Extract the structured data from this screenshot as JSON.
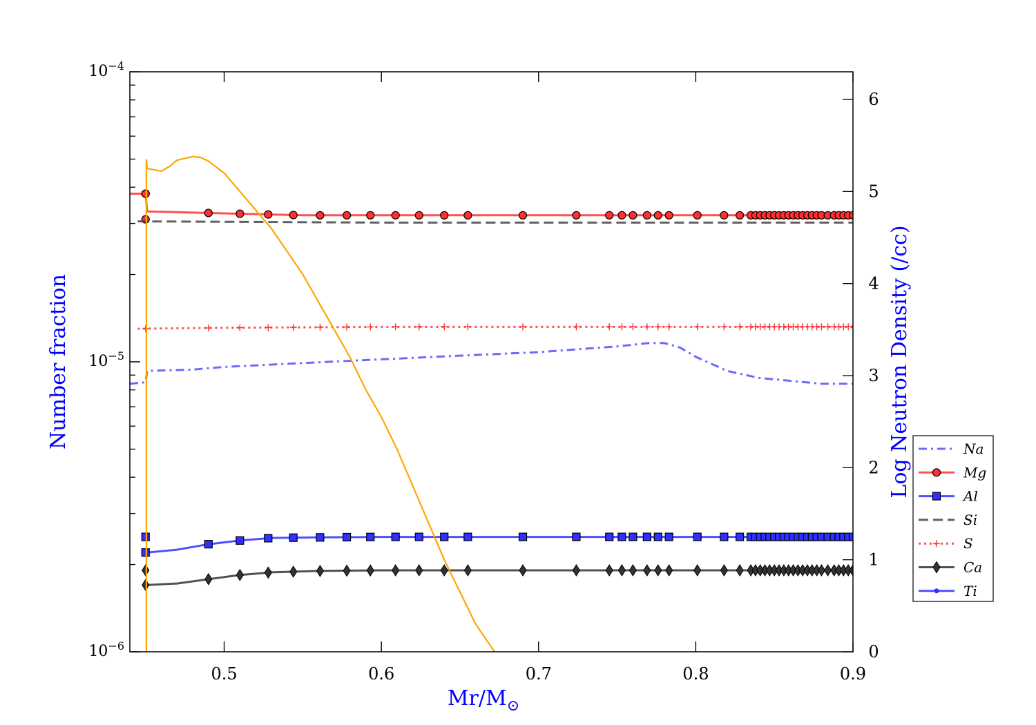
{
  "chart_data": {
    "type": "line",
    "xlabel": "Mr/M",
    "xlabel_symbol": "⊙",
    "ylabel": "Number fraction",
    "ylabel_right": "Log Neutron Density (/cc)",
    "xlim": [
      0.44,
      0.9
    ],
    "ylim": [
      1e-06,
      0.0001
    ],
    "yscale": "log",
    "ylim_right": [
      0,
      6.3
    ],
    "x_ticks": [
      "0.5",
      "0.6",
      "0.7",
      "0.8",
      "0.9"
    ],
    "x_tick_values": [
      0.5,
      0.6,
      0.7,
      0.8,
      0.9
    ],
    "y_ticks": [
      {
        "base": "10",
        "exp": "−4",
        "value": 0.0001
      },
      {
        "base": "10",
        "exp": "−5",
        "value": 1e-05
      },
      {
        "base": "10",
        "exp": "−6",
        "value": 1e-06
      }
    ],
    "y_right_ticks": [
      "0",
      "1",
      "2",
      "3",
      "4",
      "5",
      "6"
    ],
    "legend_position": "lower-right (outside plot)",
    "grid": false,
    "marker_x": [
      0.45,
      0.49,
      0.51,
      0.528,
      0.544,
      0.561,
      0.578,
      0.593,
      0.609,
      0.624,
      0.64,
      0.655,
      0.69,
      0.724,
      0.745,
      0.753,
      0.76,
      0.769,
      0.776,
      0.783,
      0.801,
      0.818,
      0.828,
      0.835,
      0.838,
      0.841,
      0.844,
      0.847,
      0.85,
      0.853,
      0.856,
      0.859,
      0.862,
      0.865,
      0.868,
      0.871,
      0.874,
      0.877,
      0.88,
      0.884,
      0.888,
      0.891,
      0.894,
      0.897,
      0.9
    ],
    "series": [
      {
        "name": "Na",
        "color": "#5050ff",
        "style": "dashdot",
        "marker": "none",
        "points": [
          [
            0.44,
            8.4e-06
          ],
          [
            0.45,
            8.5e-06
          ],
          [
            0.451,
            9.3e-06
          ],
          [
            0.48,
            9.4e-06
          ],
          [
            0.5,
            9.6e-06
          ],
          [
            0.55,
            9.9e-06
          ],
          [
            0.6,
            1.02e-05
          ],
          [
            0.65,
            1.05e-05
          ],
          [
            0.7,
            1.08e-05
          ],
          [
            0.75,
            1.13e-05
          ],
          [
            0.77,
            1.16e-05
          ],
          [
            0.78,
            1.16e-05
          ],
          [
            0.79,
            1.12e-05
          ],
          [
            0.8,
            1.04e-05
          ],
          [
            0.82,
            9.3e-06
          ],
          [
            0.84,
            8.8e-06
          ],
          [
            0.86,
            8.6e-06
          ],
          [
            0.88,
            8.4e-06
          ],
          [
            0.9,
            8.4e-06
          ]
        ]
      },
      {
        "name": "Mg",
        "color": "#ff3030",
        "style": "solid",
        "marker": "circle",
        "points": [
          [
            0.44,
            3.8e-05
          ],
          [
            0.45,
            3.8e-05
          ],
          [
            0.451,
            3.3e-05
          ],
          [
            0.5,
            3.25e-05
          ],
          [
            0.55,
            3.2e-05
          ],
          [
            0.6,
            3.2e-05
          ],
          [
            0.7,
            3.2e-05
          ],
          [
            0.8,
            3.2e-05
          ],
          [
            0.9,
            3.2e-05
          ]
        ],
        "extra_markers": [
          [
            0.45,
            3.8e-05
          ],
          [
            0.45,
            3.1e-05
          ]
        ]
      },
      {
        "name": "Al",
        "color": "#3030ff",
        "style": "solid",
        "marker": "square",
        "points": [
          [
            0.451,
            2.2e-06
          ],
          [
            0.47,
            2.25e-06
          ],
          [
            0.49,
            2.35e-06
          ],
          [
            0.51,
            2.42e-06
          ],
          [
            0.53,
            2.47e-06
          ],
          [
            0.56,
            2.48e-06
          ],
          [
            0.6,
            2.49e-06
          ],
          [
            0.7,
            2.49e-06
          ],
          [
            0.8,
            2.49e-06
          ],
          [
            0.9,
            2.49e-06
          ]
        ],
        "extra_markers": [
          [
            0.45,
            2.49e-06
          ]
        ]
      },
      {
        "name": "Si",
        "color": "#444444",
        "style": "dashed",
        "marker": "none",
        "points": [
          [
            0.445,
            3.05e-05
          ],
          [
            0.5,
            3.04e-05
          ],
          [
            0.6,
            3.02e-05
          ],
          [
            0.7,
            3.02e-05
          ],
          [
            0.8,
            3.02e-05
          ],
          [
            0.9,
            3.02e-05
          ]
        ]
      },
      {
        "name": "S",
        "color": "#ff3030",
        "style": "dotted",
        "marker": "plus",
        "points": [
          [
            0.445,
            1.3e-05
          ],
          [
            0.5,
            1.31e-05
          ],
          [
            0.6,
            1.32e-05
          ],
          [
            0.7,
            1.32e-05
          ],
          [
            0.8,
            1.32e-05
          ],
          [
            0.9,
            1.32e-05
          ]
        ]
      },
      {
        "name": "Ca",
        "color": "#333333",
        "style": "solid",
        "marker": "diamond",
        "points": [
          [
            0.451,
            1.7e-06
          ],
          [
            0.47,
            1.72e-06
          ],
          [
            0.49,
            1.78e-06
          ],
          [
            0.51,
            1.84e-06
          ],
          [
            0.53,
            1.88e-06
          ],
          [
            0.56,
            1.9e-06
          ],
          [
            0.6,
            1.91e-06
          ],
          [
            0.7,
            1.91e-06
          ],
          [
            0.8,
            1.91e-06
          ],
          [
            0.9,
            1.91e-06
          ]
        ],
        "extra_markers": [
          [
            0.45,
            1.91e-06
          ]
        ]
      },
      {
        "name": "Ti",
        "color": "#3030ff",
        "style": "solid",
        "marker": "dot",
        "points": []
      }
    ],
    "neutron_density": {
      "color": "#ffa500",
      "axis": "right",
      "points": [
        [
          0.4505,
          0
        ],
        [
          0.4505,
          5.35
        ],
        [
          0.451,
          5.25
        ],
        [
          0.46,
          5.22
        ],
        [
          0.465,
          5.27
        ],
        [
          0.47,
          5.34
        ],
        [
          0.48,
          5.38
        ],
        [
          0.485,
          5.37
        ],
        [
          0.49,
          5.33
        ],
        [
          0.5,
          5.2
        ],
        [
          0.51,
          5.0
        ],
        [
          0.52,
          4.8
        ],
        [
          0.53,
          4.6
        ],
        [
          0.54,
          4.35
        ],
        [
          0.55,
          4.1
        ],
        [
          0.56,
          3.8
        ],
        [
          0.57,
          3.5
        ],
        [
          0.58,
          3.2
        ],
        [
          0.59,
          2.85
        ],
        [
          0.6,
          2.55
        ],
        [
          0.61,
          2.2
        ],
        [
          0.62,
          1.8
        ],
        [
          0.63,
          1.4
        ],
        [
          0.64,
          1.0
        ],
        [
          0.65,
          0.65
        ],
        [
          0.66,
          0.3
        ],
        [
          0.672,
          0.0
        ]
      ]
    }
  }
}
